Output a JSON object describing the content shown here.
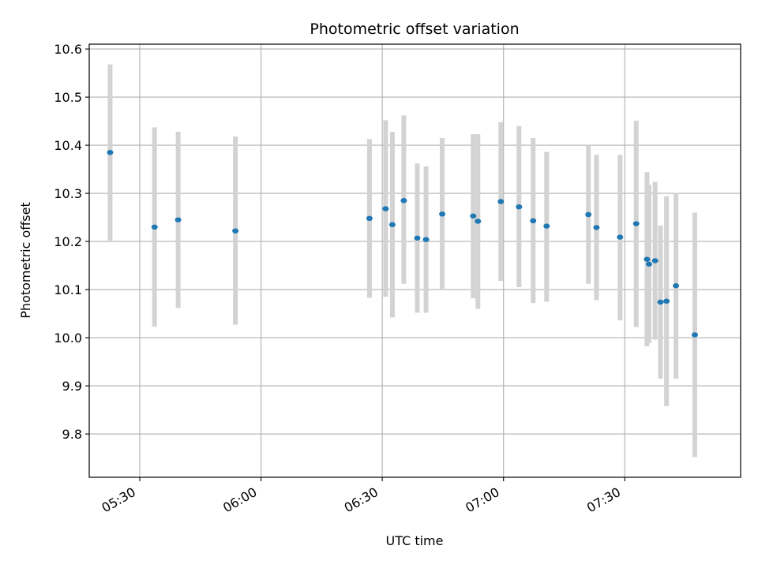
{
  "chart_data": {
    "type": "scatter",
    "title": "Photometric offset variation",
    "xlabel": "UTC time",
    "ylabel": "Photometric offset",
    "x_unit": "UTC time (HH:MM)",
    "xlim": [
      "05:17:30",
      "07:58:40"
    ],
    "ylim": [
      9.71,
      10.61
    ],
    "x_ticks": [
      "05:30",
      "06:00",
      "06:30",
      "07:00",
      "07:30"
    ],
    "y_ticks": [
      9.8,
      9.9,
      10.0,
      10.1,
      10.2,
      10.3,
      10.4,
      10.5,
      10.6
    ],
    "y_tick_labels": [
      "9.8",
      "9.9",
      "10.0",
      "10.1",
      "10.2",
      "10.3",
      "10.4",
      "10.5",
      "10.6"
    ],
    "grid": true,
    "legend": "none",
    "colors": {
      "marker": "#1f77b4",
      "errorbar": "#d3d3d3",
      "grid": "#b0b0b0",
      "axes": "#000000"
    },
    "points": [
      {
        "x": "05:22:40",
        "y": 10.385,
        "ylow": 10.202,
        "yhigh": 10.568
      },
      {
        "x": "05:33:40",
        "y": 10.23,
        "ylow": 10.023,
        "yhigh": 10.437
      },
      {
        "x": "05:39:30",
        "y": 10.245,
        "ylow": 10.062,
        "yhigh": 10.428
      },
      {
        "x": "05:53:40",
        "y": 10.222,
        "ylow": 10.027,
        "yhigh": 10.418
      },
      {
        "x": "06:26:50",
        "y": 10.248,
        "ylow": 10.083,
        "yhigh": 10.413
      },
      {
        "x": "06:30:50",
        "y": 10.268,
        "ylow": 10.085,
        "yhigh": 10.452
      },
      {
        "x": "06:32:30",
        "y": 10.235,
        "ylow": 10.042,
        "yhigh": 10.428
      },
      {
        "x": "06:35:20",
        "y": 10.285,
        "ylow": 10.112,
        "yhigh": 10.462
      },
      {
        "x": "06:38:40",
        "y": 10.207,
        "ylow": 10.052,
        "yhigh": 10.362
      },
      {
        "x": "06:40:50",
        "y": 10.204,
        "ylow": 10.052,
        "yhigh": 10.356
      },
      {
        "x": "06:44:50",
        "y": 10.257,
        "ylow": 10.1,
        "yhigh": 10.415
      },
      {
        "x": "06:52:30",
        "y": 10.253,
        "ylow": 10.082,
        "yhigh": 10.423
      },
      {
        "x": "06:53:40",
        "y": 10.242,
        "ylow": 10.06,
        "yhigh": 10.423
      },
      {
        "x": "06:59:20",
        "y": 10.283,
        "ylow": 10.118,
        "yhigh": 10.448
      },
      {
        "x": "07:03:50",
        "y": 10.272,
        "ylow": 10.105,
        "yhigh": 10.44
      },
      {
        "x": "07:07:20",
        "y": 10.243,
        "ylow": 10.072,
        "yhigh": 10.415
      },
      {
        "x": "07:10:40",
        "y": 10.232,
        "ylow": 10.075,
        "yhigh": 10.386
      },
      {
        "x": "07:21:00",
        "y": 10.256,
        "ylow": 10.112,
        "yhigh": 10.4
      },
      {
        "x": "07:23:00",
        "y": 10.229,
        "ylow": 10.078,
        "yhigh": 10.38
      },
      {
        "x": "07:28:50",
        "y": 10.209,
        "ylow": 10.036,
        "yhigh": 10.38
      },
      {
        "x": "07:32:50",
        "y": 10.237,
        "ylow": 10.022,
        "yhigh": 10.451
      },
      {
        "x": "07:35:30",
        "y": 10.163,
        "ylow": 9.982,
        "yhigh": 10.344
      },
      {
        "x": "07:36:00",
        "y": 10.153,
        "ylow": 9.989,
        "yhigh": 10.318
      },
      {
        "x": "07:37:30",
        "y": 10.16,
        "ylow": 9.996,
        "yhigh": 10.324
      },
      {
        "x": "07:38:50",
        "y": 10.074,
        "ylow": 9.915,
        "yhigh": 10.233
      },
      {
        "x": "07:40:20",
        "y": 10.076,
        "ylow": 9.858,
        "yhigh": 10.294
      },
      {
        "x": "07:42:40",
        "y": 10.108,
        "ylow": 9.915,
        "yhigh": 10.301
      },
      {
        "x": "07:47:20",
        "y": 10.006,
        "ylow": 9.752,
        "yhigh": 10.26
      }
    ]
  }
}
